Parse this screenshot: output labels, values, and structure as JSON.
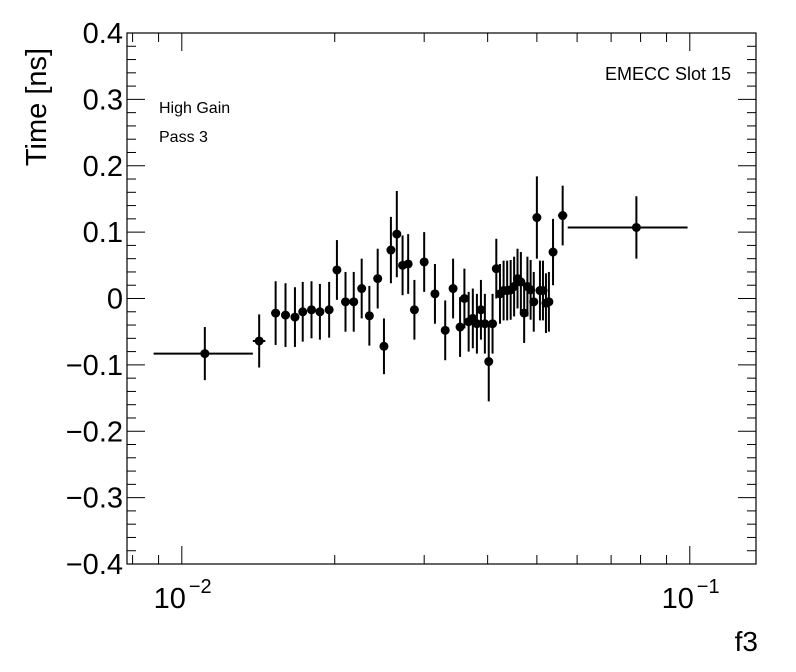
{
  "chart_data": {
    "type": "scatter",
    "xlabel": "f3",
    "ylabel": "Time [ns]",
    "x_scale": "log",
    "xlim": [
      0.0078,
      0.135
    ],
    "ylim": [
      -0.4,
      0.4
    ],
    "grid": false,
    "annotations": [
      "EMECC Slot 15",
      "High Gain",
      "Pass 3"
    ],
    "y_ticks": [
      {
        "value": -0.4,
        "label": "−0.4"
      },
      {
        "value": -0.3,
        "label": "−0.3"
      },
      {
        "value": -0.2,
        "label": "−0.2"
      },
      {
        "value": -0.1,
        "label": "−0.1"
      },
      {
        "value": 0,
        "label": "0"
      },
      {
        "value": 0.1,
        "label": "0.1"
      },
      {
        "value": 0.2,
        "label": "0.2"
      },
      {
        "value": 0.3,
        "label": "0.3"
      },
      {
        "value": 0.4,
        "label": "0.4"
      }
    ],
    "x_ticks": [
      {
        "value": 0.01,
        "base": "10",
        "exp": "−2"
      },
      {
        "value": 0.1,
        "base": "10",
        "exp": "−1"
      }
    ],
    "series": [
      {
        "points": [
          {
            "x": 0.0111,
            "y": -0.083,
            "xlo": 0.0088,
            "xhi": 0.0138,
            "err": 0.04
          },
          {
            "x": 0.0142,
            "y": -0.064,
            "xlo": 0.0138,
            "xhi": 0.0146,
            "err": 0.04
          },
          {
            "x": 0.0153,
            "y": -0.022,
            "xlo": 0.015,
            "xhi": 0.0156,
            "err": 0.048
          },
          {
            "x": 0.016,
            "y": -0.025,
            "xlo": 0.0157,
            "xhi": 0.0163,
            "err": 0.048
          },
          {
            "x": 0.0167,
            "y": -0.028,
            "xlo": 0.0164,
            "xhi": 0.017,
            "err": 0.045
          },
          {
            "x": 0.0173,
            "y": -0.02,
            "xlo": 0.017,
            "xhi": 0.0176,
            "err": 0.045
          },
          {
            "x": 0.018,
            "y": -0.017,
            "xlo": 0.0177,
            "xhi": 0.0183,
            "err": 0.043
          },
          {
            "x": 0.0187,
            "y": -0.02,
            "xlo": 0.0184,
            "xhi": 0.019,
            "err": 0.042
          },
          {
            "x": 0.0195,
            "y": -0.017,
            "xlo": 0.0192,
            "xhi": 0.0198,
            "err": 0.042
          },
          {
            "x": 0.0202,
            "y": 0.043,
            "xlo": 0.0199,
            "xhi": 0.0205,
            "err": 0.045
          },
          {
            "x": 0.021,
            "y": -0.005,
            "xlo": 0.0207,
            "xhi": 0.0213,
            "err": 0.045
          },
          {
            "x": 0.0218,
            "y": -0.005,
            "xlo": 0.0215,
            "xhi": 0.0221,
            "err": 0.045
          },
          {
            "x": 0.0226,
            "y": 0.015,
            "xlo": 0.0223,
            "xhi": 0.0229,
            "err": 0.045
          },
          {
            "x": 0.0234,
            "y": -0.026,
            "xlo": 0.0231,
            "xhi": 0.0237,
            "err": 0.045
          },
          {
            "x": 0.0243,
            "y": 0.03,
            "xlo": 0.024,
            "xhi": 0.0246,
            "err": 0.045
          },
          {
            "x": 0.025,
            "y": -0.072,
            "xlo": 0.0247,
            "xhi": 0.0253,
            "err": 0.042
          },
          {
            "x": 0.0258,
            "y": 0.073,
            "xlo": 0.0255,
            "xhi": 0.0261,
            "err": 0.05
          },
          {
            "x": 0.0265,
            "y": 0.097,
            "xlo": 0.0262,
            "xhi": 0.0268,
            "err": 0.065
          },
          {
            "x": 0.0272,
            "y": 0.05,
            "xlo": 0.0269,
            "xhi": 0.0275,
            "err": 0.045
          },
          {
            "x": 0.0279,
            "y": 0.052,
            "xlo": 0.0276,
            "xhi": 0.0282,
            "err": 0.045
          },
          {
            "x": 0.0287,
            "y": -0.017,
            "xlo": 0.0284,
            "xhi": 0.029,
            "err": 0.045
          },
          {
            "x": 0.03,
            "y": 0.055,
            "xlo": 0.0297,
            "xhi": 0.0303,
            "err": 0.045
          },
          {
            "x": 0.0315,
            "y": 0.007,
            "xlo": 0.0312,
            "xhi": 0.0318,
            "err": 0.045
          },
          {
            "x": 0.033,
            "y": -0.048,
            "xlo": 0.0327,
            "xhi": 0.0333,
            "err": 0.045
          },
          {
            "x": 0.0342,
            "y": 0.015,
            "xlo": 0.0339,
            "xhi": 0.0345,
            "err": 0.045
          },
          {
            "x": 0.0353,
            "y": -0.043,
            "xlo": 0.035,
            "xhi": 0.0356,
            "err": 0.045
          },
          {
            "x": 0.036,
            "y": 0.0,
            "xlo": 0.0357,
            "xhi": 0.0363,
            "err": 0.045
          },
          {
            "x": 0.0367,
            "y": -0.035,
            "xlo": 0.0364,
            "xhi": 0.037,
            "err": 0.045
          },
          {
            "x": 0.0374,
            "y": -0.03,
            "xlo": 0.0371,
            "xhi": 0.0377,
            "err": 0.045
          },
          {
            "x": 0.0381,
            "y": -0.038,
            "xlo": 0.0378,
            "xhi": 0.0384,
            "err": 0.045
          },
          {
            "x": 0.0388,
            "y": -0.017,
            "xlo": 0.0385,
            "xhi": 0.0391,
            "err": 0.045
          },
          {
            "x": 0.0395,
            "y": -0.038,
            "xlo": 0.0392,
            "xhi": 0.0398,
            "err": 0.045
          },
          {
            "x": 0.0402,
            "y": -0.095,
            "xlo": 0.0399,
            "xhi": 0.0405,
            "err": 0.06
          },
          {
            "x": 0.0409,
            "y": -0.038,
            "xlo": 0.0406,
            "xhi": 0.0412,
            "err": 0.045
          },
          {
            "x": 0.0416,
            "y": 0.045,
            "xlo": 0.0413,
            "xhi": 0.0419,
            "err": 0.045
          },
          {
            "x": 0.0423,
            "y": 0.007,
            "xlo": 0.042,
            "xhi": 0.0426,
            "err": 0.045
          },
          {
            "x": 0.043,
            "y": 0.012,
            "xlo": 0.0427,
            "xhi": 0.0433,
            "err": 0.045
          },
          {
            "x": 0.0437,
            "y": 0.012,
            "xlo": 0.0434,
            "xhi": 0.044,
            "err": 0.045
          },
          {
            "x": 0.0444,
            "y": 0.013,
            "xlo": 0.0441,
            "xhi": 0.0447,
            "err": 0.045
          },
          {
            "x": 0.0451,
            "y": 0.018,
            "xlo": 0.0448,
            "xhi": 0.0454,
            "err": 0.045
          },
          {
            "x": 0.0458,
            "y": 0.03,
            "xlo": 0.0455,
            "xhi": 0.0461,
            "err": 0.045
          },
          {
            "x": 0.0465,
            "y": 0.025,
            "xlo": 0.0462,
            "xhi": 0.0468,
            "err": 0.045
          },
          {
            "x": 0.0472,
            "y": -0.022,
            "xlo": 0.0469,
            "xhi": 0.0475,
            "err": 0.045
          },
          {
            "x": 0.0479,
            "y": 0.018,
            "xlo": 0.0476,
            "xhi": 0.0482,
            "err": 0.045
          },
          {
            "x": 0.0486,
            "y": 0.013,
            "xlo": 0.0483,
            "xhi": 0.0489,
            "err": 0.045
          },
          {
            "x": 0.0493,
            "y": -0.005,
            "xlo": 0.049,
            "xhi": 0.0496,
            "err": 0.045
          },
          {
            "x": 0.05,
            "y": 0.122,
            "xlo": 0.0497,
            "xhi": 0.0503,
            "err": 0.062
          },
          {
            "x": 0.0507,
            "y": 0.012,
            "xlo": 0.0504,
            "xhi": 0.051,
            "err": 0.045
          },
          {
            "x": 0.0514,
            "y": 0.012,
            "xlo": 0.0511,
            "xhi": 0.0517,
            "err": 0.045
          },
          {
            "x": 0.0521,
            "y": -0.007,
            "xlo": 0.0518,
            "xhi": 0.0524,
            "err": 0.045
          },
          {
            "x": 0.0528,
            "y": -0.005,
            "xlo": 0.0525,
            "xhi": 0.0531,
            "err": 0.045
          },
          {
            "x": 0.0538,
            "y": 0.07,
            "xlo": 0.0535,
            "xhi": 0.0541,
            "err": 0.05
          },
          {
            "x": 0.0562,
            "y": 0.125,
            "xlo": 0.055,
            "xhi": 0.0574,
            "err": 0.045
          },
          {
            "x": 0.0785,
            "y": 0.107,
            "xlo": 0.0575,
            "xhi": 0.099,
            "err": 0.047
          }
        ]
      }
    ]
  }
}
